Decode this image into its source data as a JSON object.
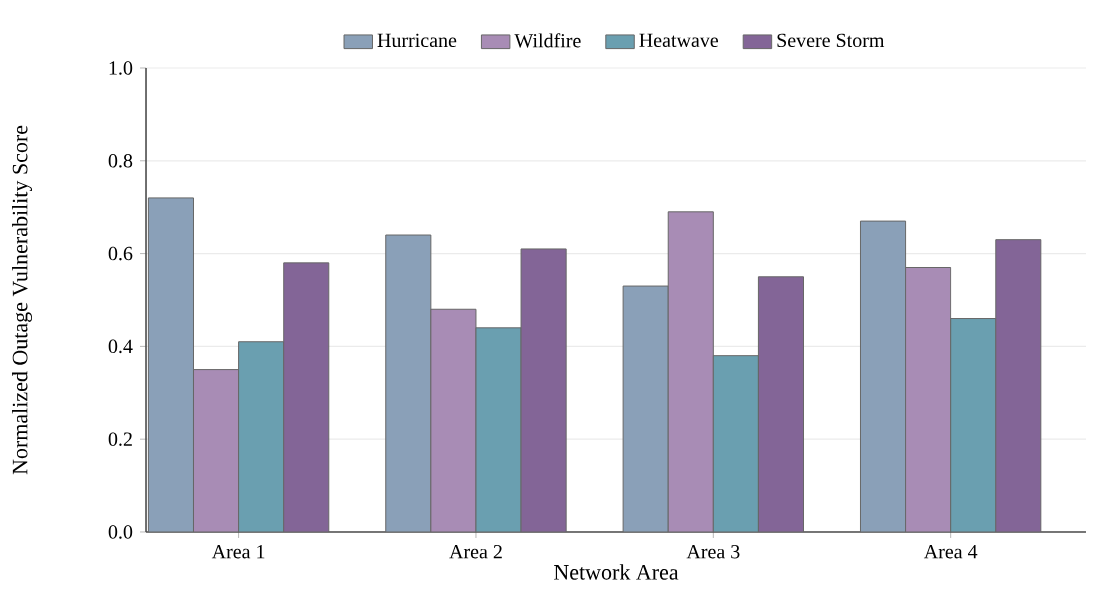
{
  "chart_data": {
    "type": "bar",
    "xlabel": "Network Area",
    "ylabel": "Normalized Outage Vulnerability Score",
    "categories": [
      "Area 1",
      "Area 2",
      "Area 3",
      "Area 4"
    ],
    "series": [
      {
        "name": "Hurricane",
        "color": "#8aa0b8",
        "values": [
          0.72,
          0.64,
          0.53,
          0.67
        ]
      },
      {
        "name": "Wildfire",
        "color": "#a88cb5",
        "values": [
          0.35,
          0.48,
          0.69,
          0.57
        ]
      },
      {
        "name": "Heatwave",
        "color": "#6a9fb0",
        "values": [
          0.41,
          0.44,
          0.38,
          0.46
        ]
      },
      {
        "name": "Severe Storm",
        "color": "#836597",
        "values": [
          0.58,
          0.61,
          0.55,
          0.63
        ]
      }
    ],
    "ylim": [
      0,
      1.0
    ],
    "yticks": [
      {
        "value": 0,
        "label": "0.0"
      },
      {
        "value": 0.2,
        "label": "0.2"
      },
      {
        "value": 0.4,
        "label": "0.4"
      },
      {
        "value": 0.6,
        "label": "0.6"
      },
      {
        "value": 0.8,
        "label": "0.8"
      },
      {
        "value": 1.0,
        "label": "1.0"
      }
    ],
    "grid": "y",
    "legend": "top"
  }
}
